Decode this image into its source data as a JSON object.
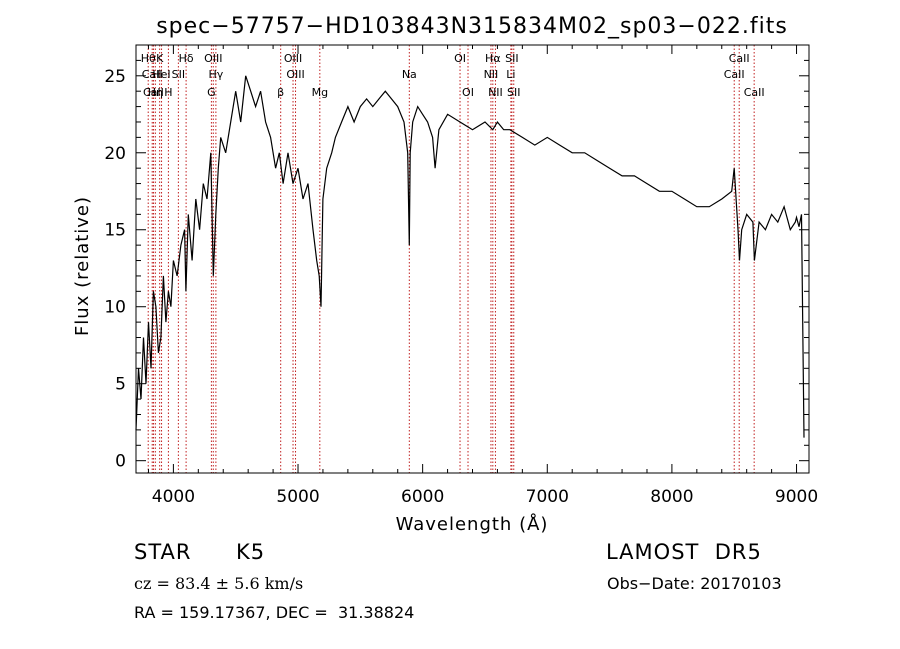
{
  "chart_data": {
    "type": "line",
    "title": "spec−57757−HD103843N315834M02_sp03−022.fits",
    "xlabel": "Wavelength (Å)",
    "ylabel": "Flux (relative)",
    "xlim": [
      3700,
      9100
    ],
    "ylim": [
      -0.8,
      27
    ],
    "x_ticks": [
      4000,
      5000,
      6000,
      7000,
      8000,
      9000
    ],
    "y_ticks": [
      0,
      5,
      10,
      15,
      20,
      25
    ],
    "grid": false,
    "series": [
      {
        "x": [
          3700,
          3720,
          3740,
          3760,
          3780,
          3800,
          3820,
          3840,
          3860,
          3880,
          3900,
          3920,
          3940,
          3960,
          3980,
          4000,
          4030,
          4060,
          4090,
          4100,
          4120,
          4150,
          4180,
          4210,
          4240,
          4270,
          4300,
          4320,
          4340,
          4360,
          4380,
          4420,
          4460,
          4500,
          4540,
          4580,
          4620,
          4660,
          4700,
          4740,
          4780,
          4820,
          4850,
          4880,
          4920,
          4960,
          5000,
          5040,
          5080,
          5120,
          5150,
          5170,
          5184,
          5200,
          5230,
          5270,
          5300,
          5350,
          5400,
          5450,
          5500,
          5550,
          5600,
          5650,
          5700,
          5750,
          5800,
          5850,
          5880,
          5893,
          5900,
          5920,
          5960,
          6000,
          6040,
          6080,
          6100,
          6130,
          6200,
          6300,
          6400,
          6500,
          6563,
          6600,
          6650,
          6700,
          6800,
          6900,
          7000,
          7100,
          7200,
          7300,
          7400,
          7500,
          7600,
          7700,
          7800,
          7900,
          8000,
          8100,
          8200,
          8300,
          8400,
          8480,
          8500,
          8530,
          8542,
          8560,
          8600,
          8650,
          8662,
          8700,
          8750,
          8800,
          8850,
          8900,
          8950,
          8990,
          9000,
          9020,
          9040,
          9060
        ],
        "y": [
          2,
          6,
          4,
          8,
          5,
          9,
          6,
          11,
          10,
          7,
          8,
          12,
          9,
          11,
          10,
          13,
          12,
          14,
          15,
          11,
          16,
          13,
          17,
          15,
          18,
          17,
          20,
          12,
          16,
          19,
          21,
          20,
          22,
          24,
          22,
          25,
          24,
          23,
          24,
          22,
          21,
          19,
          20,
          18,
          20,
          18,
          19,
          17,
          18,
          15,
          13,
          12,
          10,
          17,
          19,
          20,
          21,
          22,
          23,
          22,
          23,
          23.5,
          23,
          23.5,
          24,
          23.5,
          23,
          22,
          20,
          14,
          20,
          22,
          23,
          22.5,
          22,
          21,
          19,
          21.5,
          22.5,
          22,
          21.5,
          22,
          21.5,
          22,
          21.5,
          21.5,
          21,
          20.5,
          21,
          20.5,
          20,
          20,
          19.5,
          19,
          18.5,
          18.5,
          18,
          17.5,
          17.5,
          17,
          16.5,
          16.5,
          17,
          17.5,
          19,
          15,
          13,
          15,
          16,
          15.5,
          13,
          15.5,
          15,
          16,
          15.5,
          16.5,
          15,
          15.5,
          15.8,
          15.2,
          16,
          1.5
        ]
      }
    ],
    "line_markers": [
      {
        "name": "Hθ",
        "wavelength": 3798,
        "row": 1
      },
      {
        "name": "CaII",
        "wavelength": 3830,
        "row": 2
      },
      {
        "name": "CaII",
        "wavelength": 3840,
        "row": 3
      },
      {
        "name": "Hη",
        "wavelength": 3855,
        "row": 3
      },
      {
        "name": "K",
        "wavelength": 3890,
        "row": 1
      },
      {
        "name": "HeI",
        "wavelength": 3905,
        "row": 2
      },
      {
        "name": "H",
        "wavelength": 3960,
        "row": 3
      },
      {
        "name": "SII",
        "wavelength": 4040,
        "row": 2
      },
      {
        "name": "Hδ",
        "wavelength": 4102,
        "row": 1
      },
      {
        "name": "OIII",
        "wavelength": 4320,
        "row": 1
      },
      {
        "name": "Hγ",
        "wavelength": 4341,
        "row": 2
      },
      {
        "name": "G",
        "wavelength": 4305,
        "row": 3
      },
      {
        "name": "OIII",
        "wavelength": 4960,
        "row": 1
      },
      {
        "name": "OIII",
        "wavelength": 4980,
        "row": 2
      },
      {
        "name": "β",
        "wavelength": 4861,
        "row": 3
      },
      {
        "name": "Mg",
        "wavelength": 5175,
        "row": 3
      },
      {
        "name": "Na",
        "wavelength": 5893,
        "row": 2
      },
      {
        "name": "OI",
        "wavelength": 6300,
        "row": 1
      },
      {
        "name": "OI",
        "wavelength": 6364,
        "row": 3
      },
      {
        "name": "Hα",
        "wavelength": 6563,
        "row": 1
      },
      {
        "name": "SII",
        "wavelength": 6716,
        "row": 1
      },
      {
        "name": "NII",
        "wavelength": 6548,
        "row": 2
      },
      {
        "name": "Li",
        "wavelength": 6708,
        "row": 2
      },
      {
        "name": "NII",
        "wavelength": 6584,
        "row": 3
      },
      {
        "name": "SII",
        "wavelength": 6731,
        "row": 3
      },
      {
        "name": "CaII",
        "wavelength": 8540,
        "row": 1
      },
      {
        "name": "CaII",
        "wavelength": 8500,
        "row": 2
      },
      {
        "name": "CaII",
        "wavelength": 8660,
        "row": 3
      }
    ]
  },
  "info": {
    "class_label": "STAR",
    "subclass": "K5",
    "survey": "LAMOST  DR5",
    "cz": "cz = 83.4 ± 5.6 km/s",
    "obs_date": "Obs−Date: 20170103",
    "coords": "RA = 159.17367, DEC =  31.38824"
  },
  "colors": {
    "marker_line": "#c02020",
    "spectrum": "#000000"
  }
}
